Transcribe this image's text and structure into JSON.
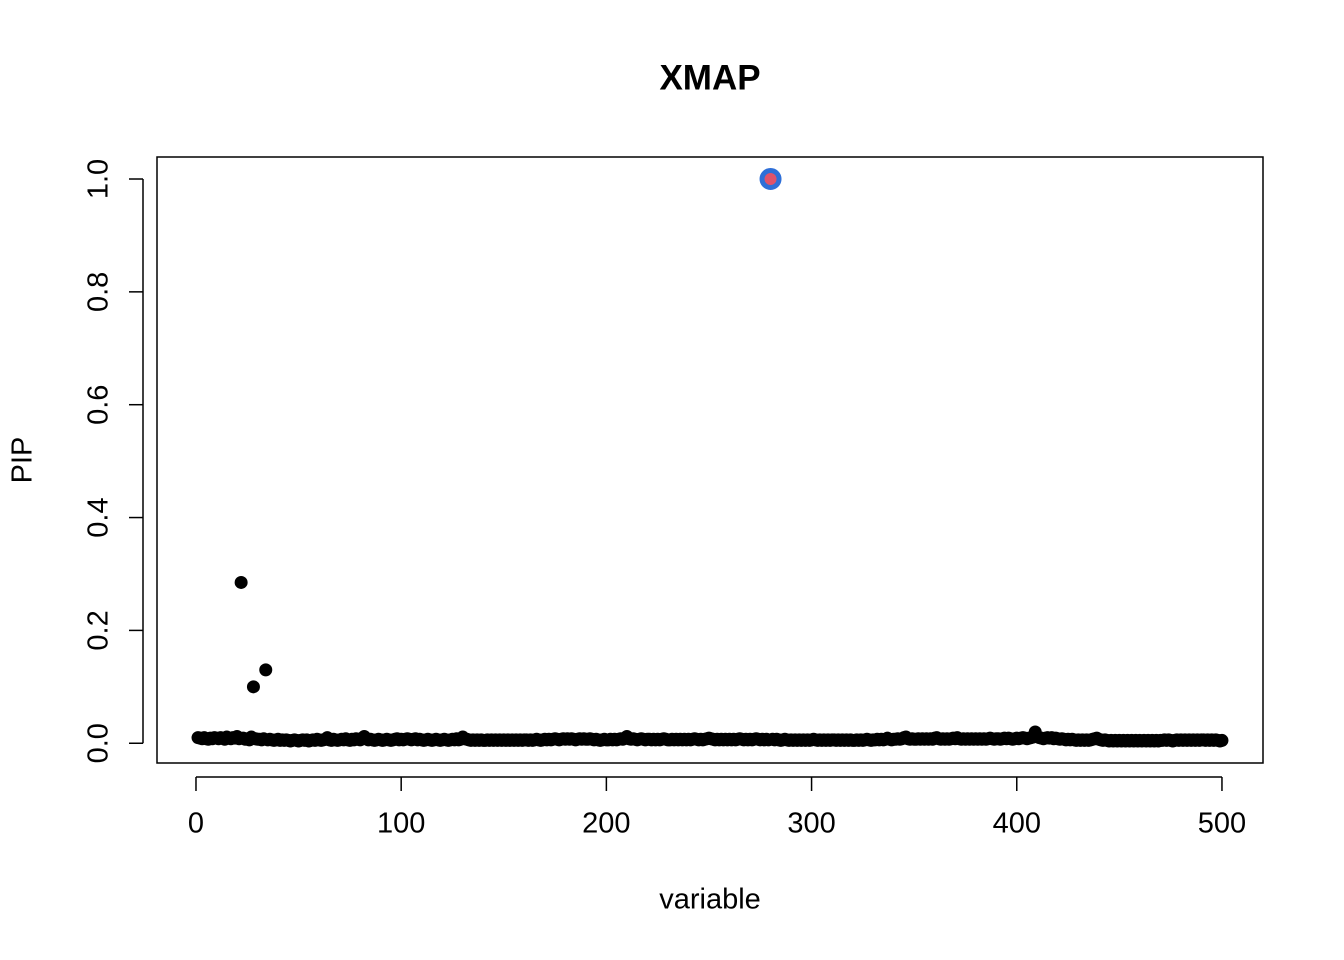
{
  "chart_data": {
    "type": "scatter",
    "title": "XMAP",
    "x_label": "variable",
    "y_label": "PIP",
    "xlim": [
      -19,
      520
    ],
    "xticks": [
      0,
      100,
      200,
      300,
      400,
      500
    ],
    "ylim": [
      -0.035,
      1.039
    ],
    "yticks": [
      {
        "value": 0,
        "label": "0.0"
      },
      0.2,
      0.4,
      0.6,
      0.8,
      {
        "value": 1,
        "label": "1.0"
      }
    ],
    "grid": false,
    "series": [
      {
        "color": "#000000",
        "x": [
          1,
          2,
          3,
          4,
          5,
          6,
          7,
          8,
          9,
          10,
          11,
          12,
          13,
          14,
          15,
          16,
          17,
          18,
          19,
          20,
          21,
          22,
          23,
          24,
          25,
          26,
          27,
          28,
          29,
          30,
          31,
          32,
          33,
          34,
          35,
          36,
          37,
          38,
          39,
          40,
          41,
          42,
          43,
          44,
          45,
          46,
          47,
          48,
          49,
          50,
          51,
          52,
          53,
          54,
          55,
          56,
          57,
          58,
          59,
          60,
          61,
          62,
          63,
          64,
          65,
          66,
          67,
          68,
          69,
          70,
          71,
          72,
          73,
          74,
          75,
          76,
          77,
          78,
          79,
          80,
          81,
          82,
          83,
          84,
          85,
          86,
          87,
          88,
          89,
          90,
          91,
          92,
          93,
          94,
          95,
          96,
          97,
          98,
          99,
          100,
          101,
          102,
          103,
          104,
          105,
          106,
          107,
          108,
          109,
          110,
          111,
          112,
          113,
          114,
          115,
          116,
          117,
          118,
          119,
          120,
          121,
          122,
          123,
          124,
          125,
          126,
          127,
          128,
          129,
          130,
          131,
          132,
          133,
          134,
          135,
          136,
          137,
          138,
          139,
          140,
          141,
          142,
          143,
          144,
          145,
          146,
          147,
          148,
          149,
          150,
          151,
          152,
          153,
          154,
          155,
          156,
          157,
          158,
          159,
          160,
          161,
          162,
          163,
          164,
          165,
          166,
          167,
          168,
          169,
          170,
          171,
          172,
          173,
          174,
          175,
          176,
          177,
          178,
          179,
          180,
          181,
          182,
          183,
          184,
          185,
          186,
          187,
          188,
          189,
          190,
          191,
          192,
          193,
          194,
          195,
          196,
          197,
          198,
          199,
          200,
          201,
          202,
          203,
          204,
          205,
          206,
          207,
          208,
          209,
          210,
          211,
          212,
          213,
          214,
          215,
          216,
          217,
          218,
          219,
          220,
          221,
          222,
          223,
          224,
          225,
          226,
          227,
          228,
          229,
          230,
          231,
          232,
          233,
          234,
          235,
          236,
          237,
          238,
          239,
          240,
          241,
          242,
          243,
          244,
          245,
          246,
          247,
          248,
          249,
          250,
          251,
          252,
          253,
          254,
          255,
          256,
          257,
          258,
          259,
          260,
          261,
          262,
          263,
          264,
          265,
          266,
          267,
          268,
          269,
          270,
          271,
          272,
          273,
          274,
          275,
          276,
          277,
          278,
          279,
          281,
          282,
          283,
          284,
          285,
          286,
          287,
          288,
          289,
          290,
          291,
          292,
          293,
          294,
          295,
          296,
          297,
          298,
          299,
          300,
          301,
          302,
          303,
          304,
          305,
          306,
          307,
          308,
          309,
          310,
          311,
          312,
          313,
          314,
          315,
          316,
          317,
          318,
          319,
          320,
          321,
          322,
          323,
          324,
          325,
          326,
          327,
          328,
          329,
          330,
          331,
          332,
          333,
          334,
          335,
          336,
          337,
          338,
          339,
          340,
          341,
          342,
          343,
          344,
          345,
          346,
          347,
          348,
          349,
          350,
          351,
          352,
          353,
          354,
          355,
          356,
          357,
          358,
          359,
          360,
          361,
          362,
          363,
          364,
          365,
          366,
          367,
          368,
          369,
          370,
          371,
          372,
          373,
          374,
          375,
          376,
          377,
          378,
          379,
          380,
          381,
          382,
          383,
          384,
          385,
          386,
          387,
          388,
          389,
          390,
          391,
          392,
          393,
          394,
          395,
          396,
          397,
          398,
          399,
          400,
          401,
          402,
          403,
          404,
          405,
          406,
          407,
          408,
          409,
          410,
          411,
          412,
          413,
          414,
          415,
          416,
          417,
          418,
          419,
          420,
          421,
          422,
          423,
          424,
          425,
          426,
          427,
          428,
          429,
          430,
          431,
          432,
          433,
          434,
          435,
          436,
          437,
          438,
          439,
          440,
          441,
          442,
          443,
          444,
          445,
          446,
          447,
          448,
          449,
          450,
          451,
          452,
          453,
          454,
          455,
          456,
          457,
          458,
          459,
          460,
          461,
          462,
          463,
          464,
          465,
          466,
          467,
          468,
          469,
          470,
          471,
          472,
          473,
          474,
          475,
          476,
          477,
          478,
          479,
          480,
          481,
          482,
          483,
          484,
          485,
          486,
          487,
          488,
          489,
          490,
          491,
          492,
          493,
          494,
          495,
          496,
          497,
          498,
          499,
          500
        ],
        "values": [
          0.01,
          0.009,
          0.008,
          0.01,
          0.008,
          0.007,
          0.009,
          0.008,
          0.01,
          0.009,
          0.008,
          0.01,
          0.009,
          0.007,
          0.011,
          0.009,
          0.008,
          0.01,
          0.009,
          0.012,
          0.008,
          0.285,
          0.009,
          0.007,
          0.008,
          0.006,
          0.011,
          0.1,
          0.008,
          0.007,
          0.007,
          0.006,
          0.008,
          0.13,
          0.006,
          0.007,
          0.006,
          0.005,
          0.006,
          0.007,
          0.005,
          0.006,
          0.005,
          0.006,
          0.005,
          0.004,
          0.005,
          0.006,
          0.005,
          0.004,
          0.005,
          0.006,
          0.005,
          0.006,
          0.004,
          0.005,
          0.006,
          0.005,
          0.007,
          0.006,
          0.005,
          0.006,
          0.007,
          0.01,
          0.006,
          0.005,
          0.007,
          0.006,
          0.005,
          0.006,
          0.007,
          0.006,
          0.008,
          0.006,
          0.005,
          0.007,
          0.006,
          0.008,
          0.007,
          0.006,
          0.009,
          0.012,
          0.008,
          0.006,
          0.007,
          0.006,
          0.005,
          0.006,
          0.007,
          0.006,
          0.005,
          0.006,
          0.007,
          0.006,
          0.005,
          0.006,
          0.007,
          0.008,
          0.006,
          0.007,
          0.006,
          0.007,
          0.008,
          0.007,
          0.006,
          0.007,
          0.008,
          0.006,
          0.007,
          0.006,
          0.005,
          0.006,
          0.007,
          0.006,
          0.005,
          0.006,
          0.007,
          0.006,
          0.005,
          0.006,
          0.007,
          0.006,
          0.005,
          0.006,
          0.007,
          0.006,
          0.008,
          0.006,
          0.007,
          0.011,
          0.008,
          0.007,
          0.006,
          0.005,
          0.006,
          0.005,
          0.006,
          0.005,
          0.006,
          0.005,
          0.005,
          0.006,
          0.005,
          0.006,
          0.005,
          0.006,
          0.005,
          0.006,
          0.005,
          0.006,
          0.005,
          0.006,
          0.005,
          0.006,
          0.005,
          0.006,
          0.005,
          0.006,
          0.005,
          0.006,
          0.006,
          0.005,
          0.006,
          0.005,
          0.006,
          0.007,
          0.006,
          0.005,
          0.006,
          0.007,
          0.006,
          0.007,
          0.006,
          0.007,
          0.008,
          0.007,
          0.006,
          0.007,
          0.008,
          0.007,
          0.008,
          0.007,
          0.008,
          0.007,
          0.006,
          0.007,
          0.008,
          0.007,
          0.008,
          0.007,
          0.007,
          0.008,
          0.007,
          0.006,
          0.007,
          0.006,
          0.005,
          0.006,
          0.007,
          0.006,
          0.006,
          0.007,
          0.006,
          0.007,
          0.006,
          0.007,
          0.008,
          0.007,
          0.009,
          0.012,
          0.008,
          0.007,
          0.008,
          0.007,
          0.006,
          0.007,
          0.008,
          0.007,
          0.006,
          0.007,
          0.007,
          0.006,
          0.007,
          0.006,
          0.007,
          0.006,
          0.007,
          0.008,
          0.007,
          0.006,
          0.006,
          0.007,
          0.006,
          0.007,
          0.006,
          0.007,
          0.006,
          0.007,
          0.006,
          0.007,
          0.006,
          0.007,
          0.008,
          0.007,
          0.006,
          0.007,
          0.006,
          0.007,
          0.008,
          0.009,
          0.008,
          0.007,
          0.006,
          0.007,
          0.006,
          0.007,
          0.006,
          0.007,
          0.006,
          0.007,
          0.006,
          0.007,
          0.006,
          0.007,
          0.008,
          0.007,
          0.006,
          0.007,
          0.006,
          0.007,
          0.006,
          0.007,
          0.008,
          0.007,
          0.006,
          0.007,
          0.006,
          0.007,
          0.006,
          0.007,
          0.006,
          0.007,
          0.006,
          0.005,
          0.006,
          0.007,
          0.006,
          0.005,
          0.006,
          0.005,
          0.006,
          0.005,
          0.006,
          0.005,
          0.006,
          0.005,
          0.006,
          0.005,
          0.006,
          0.007,
          0.006,
          0.005,
          0.006,
          0.005,
          0.006,
          0.005,
          0.006,
          0.005,
          0.006,
          0.006,
          0.005,
          0.006,
          0.005,
          0.006,
          0.005,
          0.006,
          0.005,
          0.006,
          0.005,
          0.005,
          0.006,
          0.005,
          0.006,
          0.005,
          0.006,
          0.007,
          0.006,
          0.005,
          0.006,
          0.006,
          0.007,
          0.006,
          0.007,
          0.006,
          0.007,
          0.009,
          0.007,
          0.006,
          0.007,
          0.007,
          0.008,
          0.007,
          0.008,
          0.01,
          0.011,
          0.008,
          0.007,
          0.008,
          0.007,
          0.007,
          0.008,
          0.007,
          0.008,
          0.007,
          0.008,
          0.007,
          0.008,
          0.007,
          0.009,
          0.01,
          0.008,
          0.007,
          0.008,
          0.007,
          0.008,
          0.007,
          0.008,
          0.009,
          0.008,
          0.01,
          0.008,
          0.007,
          0.008,
          0.007,
          0.008,
          0.007,
          0.008,
          0.007,
          0.008,
          0.007,
          0.008,
          0.007,
          0.008,
          0.007,
          0.008,
          0.009,
          0.008,
          0.007,
          0.008,
          0.008,
          0.007,
          0.008,
          0.009,
          0.008,
          0.009,
          0.008,
          0.007,
          0.008,
          0.009,
          0.008,
          0.009,
          0.01,
          0.009,
          0.008,
          0.009,
          0.01,
          0.011,
          0.02,
          0.012,
          0.01,
          0.009,
          0.008,
          0.009,
          0.01,
          0.009,
          0.01,
          0.008,
          0.009,
          0.008,
          0.007,
          0.008,
          0.007,
          0.006,
          0.007,
          0.006,
          0.007,
          0.006,
          0.005,
          0.006,
          0.005,
          0.006,
          0.005,
          0.006,
          0.005,
          0.006,
          0.007,
          0.008,
          0.009,
          0.007,
          0.006,
          0.005,
          0.006,
          0.005,
          0.004,
          0.005,
          0.004,
          0.005,
          0.004,
          0.005,
          0.004,
          0.005,
          0.004,
          0.005,
          0.004,
          0.005,
          0.004,
          0.005,
          0.004,
          0.005,
          0.004,
          0.005,
          0.004,
          0.005,
          0.004,
          0.005,
          0.004,
          0.005,
          0.004,
          0.005,
          0.005,
          0.006,
          0.005,
          0.006,
          0.005,
          0.004,
          0.005,
          0.006,
          0.005,
          0.006,
          0.005,
          0.006,
          0.005,
          0.006,
          0.005,
          0.006,
          0.005,
          0.006,
          0.005,
          0.006,
          0.006,
          0.005,
          0.006,
          0.005,
          0.006,
          0.005,
          0.006,
          0.005,
          0.004,
          0.005
        ]
      },
      {
        "color": "#df536b",
        "edge_color": "#2e6fd8",
        "x": [
          280
        ],
        "values": [
          1
        ]
      }
    ]
  }
}
